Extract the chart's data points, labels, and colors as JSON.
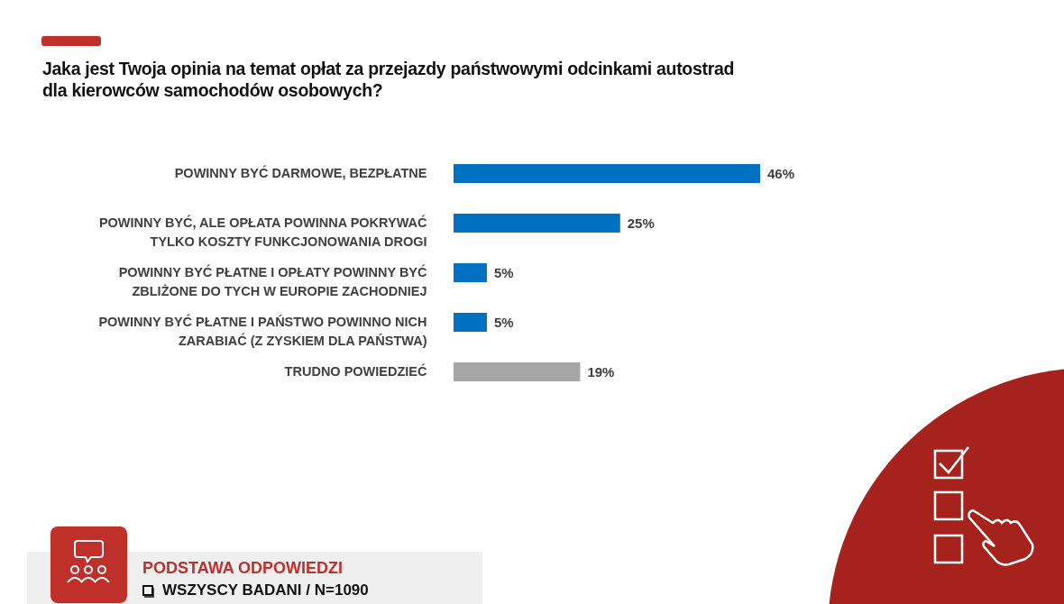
{
  "chart_data": {
    "type": "bar",
    "orientation": "horizontal",
    "title": "Jaka jest Twoja opinia na temat opłat za przejazdy państwowymi odcinkami autostrad\ndla kierowców samochodów osobowych?",
    "categories": [
      "POWINNY BYĆ DARMOWE, BEZPŁATNE",
      "POWINNY BYĆ, ALE OPŁATA POWINNA POKRYWAĆ\nTYLKO KOSZTY FUNKCJONOWANIA DROGI",
      "POWINNY BYĆ PŁATNE I OPŁATY POWINNY BYĆ\nZBLIŻONE DO TYCH W EUROPIE ZACHODNIEJ",
      "POWINNY BYĆ PŁATNE I PAŃSTWO POWINNO NICH\nZARABIAĆ (Z ZYSKIEM DLA PAŃSTWA)",
      "TRUDNO POWIEDZIEĆ"
    ],
    "values": [
      46,
      25,
      5,
      5,
      19
    ],
    "value_labels": [
      "46%",
      "25%",
      "5%",
      "5%",
      "19%"
    ],
    "colors": [
      "#0070c0",
      "#0070c0",
      "#0070c0",
      "#0070c0",
      "#a6a6a6"
    ],
    "annotations": [
      "PODSTAWA ODPOWIEDZI",
      "WSZYSCY BADANI / N=1090"
    ]
  }
}
